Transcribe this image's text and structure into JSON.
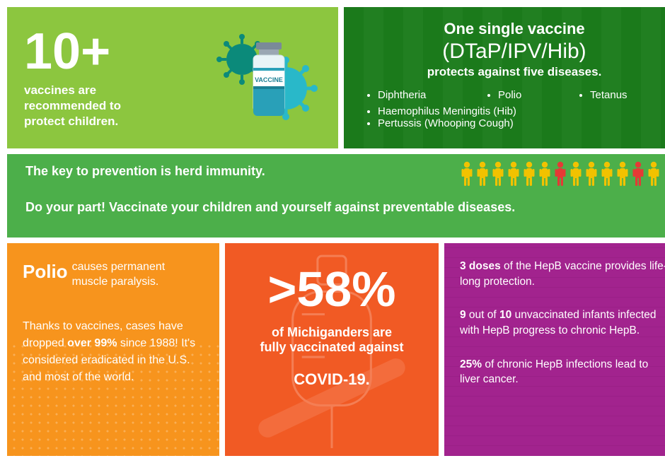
{
  "top_left": {
    "number": "10+",
    "subtitle": "vaccines are recommended to protect children.",
    "vial_label": "VACCINE",
    "colors": {
      "bg": "#8cc63f",
      "virus1": "#0b8a7a",
      "virus2": "#29b8c9",
      "vial_stripe": "#29a0b8",
      "vial_cap": "#7a8a99"
    }
  },
  "top_right": {
    "heading": "One single vaccine",
    "paren": "(DTaP/IPV/Hib)",
    "subhead": "protects against five diseases.",
    "diseases_col1": "Diphtheria",
    "diseases_col2": "Polio",
    "diseases_col3": "Tetanus",
    "diseases_row2a": "Haemophilus  Meningitis (Hib)",
    "diseases_row2b": "Pertussis (Whooping Cough)",
    "colors": {
      "bg_a": "#1b7a1b",
      "bg_b": "#217f21"
    }
  },
  "mid": {
    "line1": "The key to prevention is herd immunity.",
    "line2": "Do your part! Vaccinate your children and yourself against preventable diseases.",
    "people_colors": [
      "#f2c200",
      "#f2c200",
      "#f2c200",
      "#f2c200",
      "#f2c200",
      "#f2c200",
      "#e53935",
      "#f2c200",
      "#f2c200",
      "#f2c200",
      "#f2c200",
      "#e53935",
      "#f2c200"
    ],
    "bg": "#4caf4a"
  },
  "bottom_left": {
    "polio_bold": "Polio",
    "polio_rest": " causes permanent muscle paralysis.",
    "body_pre": "Thanks to vaccines, cases have dropped ",
    "body_bold": "over 99%",
    "body_post": " since 1988! It's considered eradicated in the U.S. and most of the world.",
    "bg": "#f7941d"
  },
  "bottom_mid": {
    "big": ">58%",
    "line1": "of Michiganders are",
    "line2": "fully vaccinated against",
    "covid": "COVID-19.",
    "bg": "#f15a24"
  },
  "bottom_right": {
    "p1_bold": "3 doses",
    "p1_rest": " of the HepB vaccine provides life-long protection.",
    "p2_b1": "9",
    "p2_mid": " out of ",
    "p2_b2": "10",
    "p2_rest": " unvaccinated infants infected with HepB progress to chronic HepB.",
    "p3_bold": "25%",
    "p3_rest": " of chronic HepB infections lead to liver cancer.",
    "bg": "#a2238e"
  }
}
